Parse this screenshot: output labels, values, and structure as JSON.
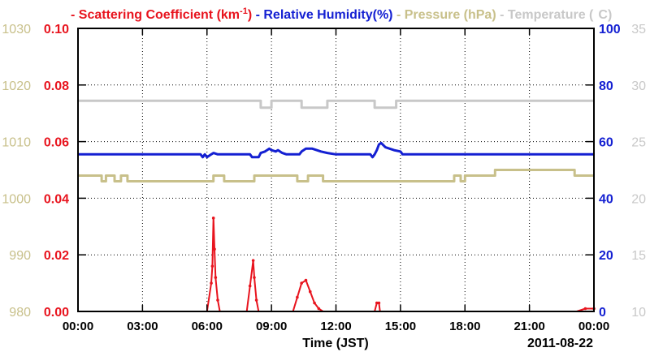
{
  "chart_data": {
    "type": "line",
    "xlabel": "Time (JST)",
    "date_label": "2011-08-22",
    "x_ticks": [
      "00:00",
      "03:00",
      "06:00",
      "09:00",
      "12:00",
      "15:00",
      "18:00",
      "21:00",
      "00:00"
    ],
    "x_range_hours": [
      0,
      24
    ],
    "legend": [
      {
        "key": "scattering",
        "dash": "-",
        "text": "Scattering Coefficient (km",
        "sup": "-1",
        "tail": ")",
        "color": "#e8141e"
      },
      {
        "key": "humidity",
        "dash": "-",
        "text": "Relative Humidity(%)",
        "color": "#1420d2"
      },
      {
        "key": "pressure",
        "dash": "-",
        "text": "Pressure (hPa)",
        "color": "#c8c08a"
      },
      {
        "key": "temperature",
        "dash": "-",
        "text": "Temperature (",
        "tail": "C)",
        "color": "#c8c8c8"
      }
    ],
    "axes": {
      "pressure": {
        "range": [
          980,
          1030
        ],
        "ticks": [
          "980",
          "990",
          "1000",
          "1010",
          "1020",
          "1030"
        ],
        "color": "#c8c08a"
      },
      "scattering": {
        "range": [
          0,
          0.1
        ],
        "ticks": [
          "0.00",
          "0.02",
          "0.04",
          "0.06",
          "0.08",
          "0.10"
        ],
        "color": "#e8141e"
      },
      "humidity": {
        "range": [
          0,
          100
        ],
        "ticks": [
          "0",
          "20",
          "40",
          "60",
          "80",
          "100"
        ],
        "color": "#1420d2"
      },
      "temperature": {
        "range": [
          10,
          35
        ],
        "ticks": [
          "10",
          "15",
          "20",
          "25",
          "30",
          "35"
        ],
        "color": "#c8c8c8"
      }
    },
    "series": [
      {
        "name": "Temperature",
        "axis": "temperature",
        "color": "#c8c8c8",
        "step": true,
        "points": [
          [
            0,
            28.6
          ],
          [
            8.5,
            28.6
          ],
          [
            8.5,
            28.0
          ],
          [
            9.0,
            28.0
          ],
          [
            9.0,
            28.6
          ],
          [
            10.4,
            28.6
          ],
          [
            10.4,
            28.0
          ],
          [
            11.6,
            28.0
          ],
          [
            11.6,
            28.6
          ],
          [
            13.8,
            28.6
          ],
          [
            13.8,
            28.0
          ],
          [
            14.8,
            28.0
          ],
          [
            14.8,
            28.6
          ],
          [
            24,
            28.6
          ]
        ]
      },
      {
        "name": "Pressure",
        "axis": "pressure",
        "color": "#c8c08a",
        "step": true,
        "points": [
          [
            0,
            1004.0
          ],
          [
            1.1,
            1004.0
          ],
          [
            1.1,
            1003.0
          ],
          [
            1.3,
            1003.0
          ],
          [
            1.3,
            1004.0
          ],
          [
            1.7,
            1004.0
          ],
          [
            1.7,
            1003.0
          ],
          [
            2.0,
            1003.0
          ],
          [
            2.0,
            1004.0
          ],
          [
            2.3,
            1004.0
          ],
          [
            2.3,
            1003.0
          ],
          [
            6.3,
            1003.0
          ],
          [
            6.3,
            1004.0
          ],
          [
            6.8,
            1004.0
          ],
          [
            6.8,
            1003.0
          ],
          [
            8.2,
            1003.0
          ],
          [
            8.2,
            1004.0
          ],
          [
            10.2,
            1004.0
          ],
          [
            10.2,
            1003.0
          ],
          [
            10.7,
            1003.0
          ],
          [
            10.7,
            1004.0
          ],
          [
            11.4,
            1004.0
          ],
          [
            11.4,
            1003.0
          ],
          [
            17.5,
            1003.0
          ],
          [
            17.5,
            1004.0
          ],
          [
            17.8,
            1004.0
          ],
          [
            17.8,
            1003.0
          ],
          [
            18.0,
            1003.0
          ],
          [
            18.0,
            1004.0
          ],
          [
            19.4,
            1004.0
          ],
          [
            19.4,
            1005.0
          ],
          [
            23.1,
            1005.0
          ],
          [
            23.1,
            1004.0
          ],
          [
            24,
            1004.0
          ]
        ]
      },
      {
        "name": "Relative Humidity",
        "axis": "humidity",
        "color": "#1420d2",
        "step": false,
        "points": [
          [
            0,
            55.5
          ],
          [
            5.7,
            55.5
          ],
          [
            5.8,
            54.5
          ],
          [
            5.9,
            55.5
          ],
          [
            6.0,
            54.5
          ],
          [
            6.2,
            55.5
          ],
          [
            6.3,
            56.0
          ],
          [
            6.5,
            55.5
          ],
          [
            8.0,
            55.5
          ],
          [
            8.1,
            54.5
          ],
          [
            8.4,
            54.5
          ],
          [
            8.5,
            56.0
          ],
          [
            8.7,
            56.5
          ],
          [
            8.9,
            57.5
          ],
          [
            9.0,
            57.0
          ],
          [
            9.2,
            56.5
          ],
          [
            9.3,
            57.0
          ],
          [
            9.5,
            56.0
          ],
          [
            9.7,
            55.5
          ],
          [
            10.3,
            55.5
          ],
          [
            10.4,
            56.5
          ],
          [
            10.6,
            57.5
          ],
          [
            10.9,
            57.5
          ],
          [
            11.1,
            57.0
          ],
          [
            11.3,
            56.5
          ],
          [
            11.6,
            56.0
          ],
          [
            12.0,
            55.5
          ],
          [
            13.6,
            55.5
          ],
          [
            13.7,
            54.5
          ],
          [
            13.8,
            55.5
          ],
          [
            13.9,
            57.0
          ],
          [
            14.0,
            59.0
          ],
          [
            14.1,
            59.5
          ],
          [
            14.3,
            58.0
          ],
          [
            14.5,
            57.5
          ],
          [
            14.7,
            57.0
          ],
          [
            15.0,
            56.5
          ],
          [
            15.1,
            55.5
          ],
          [
            24,
            55.5
          ]
        ]
      },
      {
        "name": "Scattering Coefficient",
        "axis": "scattering",
        "color": "#e8141e",
        "step": false,
        "markers": true,
        "points": [
          [
            0,
            0
          ],
          [
            6.0,
            0
          ],
          [
            6.2,
            0.01
          ],
          [
            6.25,
            0.016
          ],
          [
            6.3,
            0.033
          ],
          [
            6.35,
            0.022
          ],
          [
            6.4,
            0.012
          ],
          [
            6.5,
            0.004
          ],
          [
            6.6,
            0
          ],
          [
            7.85,
            0
          ],
          [
            8.0,
            0.009
          ],
          [
            8.15,
            0.018
          ],
          [
            8.2,
            0.012
          ],
          [
            8.3,
            0.004
          ],
          [
            8.4,
            0
          ],
          [
            10.0,
            0
          ],
          [
            10.2,
            0.005
          ],
          [
            10.4,
            0.01
          ],
          [
            10.6,
            0.011
          ],
          [
            10.8,
            0.007
          ],
          [
            11.0,
            0.003
          ],
          [
            11.2,
            0.001
          ],
          [
            11.4,
            0
          ],
          [
            13.8,
            0
          ],
          [
            13.9,
            0.003
          ],
          [
            14.0,
            0.003
          ],
          [
            14.05,
            0
          ],
          [
            23.2,
            0
          ],
          [
            23.6,
            0.001
          ],
          [
            24,
            0.001
          ]
        ]
      }
    ]
  }
}
